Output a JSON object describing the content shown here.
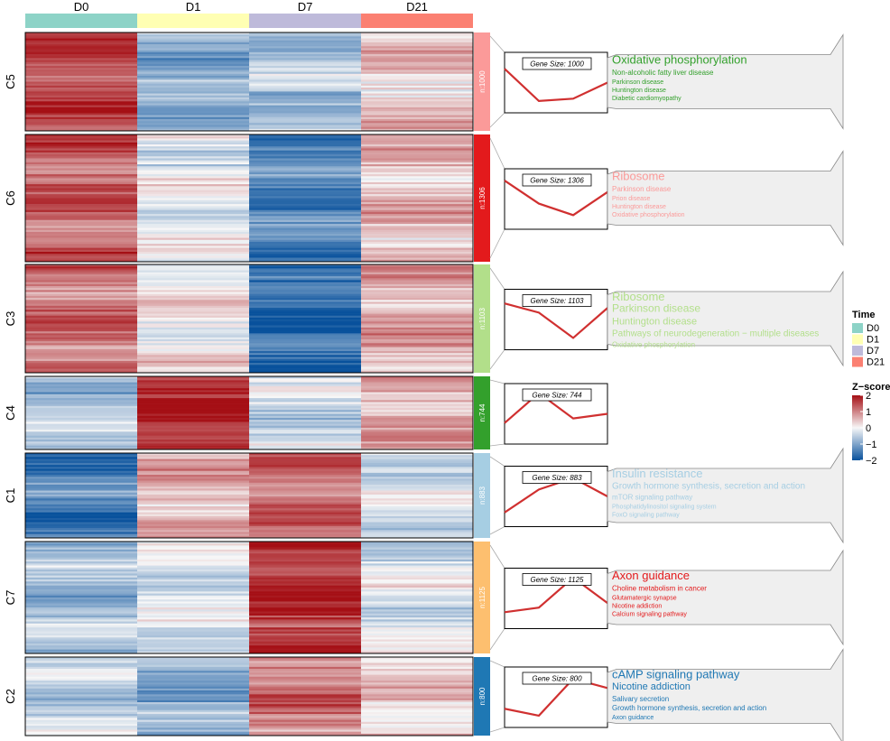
{
  "time_annotation": {
    "title": "Time",
    "columns": [
      "D0",
      "D1",
      "D7",
      "D21"
    ],
    "colors": [
      "#8DD3C7",
      "#FFFFB3",
      "#BEBADA",
      "#FB8072"
    ]
  },
  "zscore_legend": {
    "title": "Z−score",
    "ticks": [
      "2",
      "1",
      "0",
      "−1",
      "−2"
    ],
    "tick_values": [
      2,
      1,
      0,
      -1,
      -2
    ],
    "colors": [
      "#A50F15",
      "#F7F7F7",
      "#08519C"
    ]
  },
  "chart_data": {
    "type": "heatmap",
    "columns": [
      "D0",
      "D1",
      "D7",
      "D21"
    ],
    "zscore_range": [
      -2,
      2
    ],
    "clusters": [
      {
        "name": "C5",
        "n_label": "n:1000",
        "gene_size_label": "Gene Size: 1000",
        "color": "#FB9A99",
        "mean_zscore": [
          1.5,
          -0.9,
          -0.6,
          0.4
        ],
        "trend": [
          0.8,
          0.1,
          0.15,
          0.5
        ],
        "kegg_color": "#33A02C",
        "kegg_terms": [
          "Oxidative phosphorylation",
          "Non-alcoholic fatty liver disease",
          "Parkinson disease",
          "Huntington disease",
          "Diabetic cardiomyopathy"
        ]
      },
      {
        "name": "C6",
        "n_label": "n:1306",
        "gene_size_label": "Gene Size: 1306",
        "color": "#E31A1C",
        "mean_zscore": [
          1.3,
          -0.1,
          -1.4,
          0.6
        ],
        "trend": [
          0.9,
          0.4,
          0.15,
          0.65
        ],
        "kegg_color": "#FB9A99",
        "kegg_terms": [
          "Ribosome",
          "Parkinson disease",
          "Prion disease",
          "Huntington disease",
          "Oxidative phosphorylation"
        ]
      },
      {
        "name": "C3",
        "n_label": "n:1103",
        "gene_size_label": "Gene Size: 1103",
        "color": "#B2DF8A",
        "mean_zscore": [
          1.2,
          0.1,
          -1.7,
          0.7
        ],
        "trend": [
          0.85,
          0.65,
          0.1,
          0.75
        ],
        "kegg_color": "#B2DF8A",
        "kegg_terms": [
          "Ribosome",
          "Parkinson disease",
          "Huntington disease",
          "Pathways of neurodegeneration − multiple diseases",
          "Oxidative phosphorylation"
        ]
      },
      {
        "name": "C4",
        "n_label": "n:744",
        "gene_size_label": "Gene Size: 744",
        "color": "#33A02C",
        "mean_zscore": [
          -0.6,
          1.8,
          -0.4,
          0.6
        ],
        "trend": [
          0.3,
          0.95,
          0.4,
          0.5
        ],
        "kegg_color": "#33A02C",
        "kegg_terms": []
      },
      {
        "name": "C1",
        "n_label": "n:883",
        "gene_size_label": "Gene Size: 883",
        "color": "#A6CEE3",
        "mean_zscore": [
          -1.5,
          0.6,
          1.2,
          -0.3
        ],
        "trend": [
          0.15,
          0.65,
          0.9,
          0.5
        ],
        "kegg_color": "#A6CEE3",
        "kegg_terms": [
          "Insulin resistance",
          "Growth hormone synthesis, secretion and action",
          "mTOR signaling pathway",
          "Phosphatidylinositol signaling system",
          "FoxO signaling pathway"
        ]
      },
      {
        "name": "C7",
        "n_label": "n:1125",
        "gene_size_label": "Gene Size: 1125",
        "color": "#FDBF6F",
        "mean_zscore": [
          -0.7,
          -0.3,
          1.8,
          -0.2
        ],
        "trend": [
          0.2,
          0.3,
          0.95,
          0.4
        ],
        "kegg_color": "#E31A1C",
        "kegg_terms": [
          "Axon guidance",
          "Choline metabolism in cancer",
          "Glutamatergic synapse",
          "Nicotine addiction",
          "Calcium signaling pathway"
        ]
      },
      {
        "name": "C2",
        "n_label": "n:800",
        "gene_size_label": "Gene Size: 800",
        "color": "#1F78B4",
        "mean_zscore": [
          -0.4,
          -0.9,
          1.1,
          0.4
        ],
        "trend": [
          0.25,
          0.1,
          0.9,
          0.7
        ],
        "kegg_color": "#1F78B4",
        "kegg_terms": [
          "cAMP signaling pathway",
          "Nicotine addiction",
          "Salivary secretion",
          "Growth hormone synthesis, secretion and action",
          "Axon guidance"
        ]
      }
    ]
  }
}
